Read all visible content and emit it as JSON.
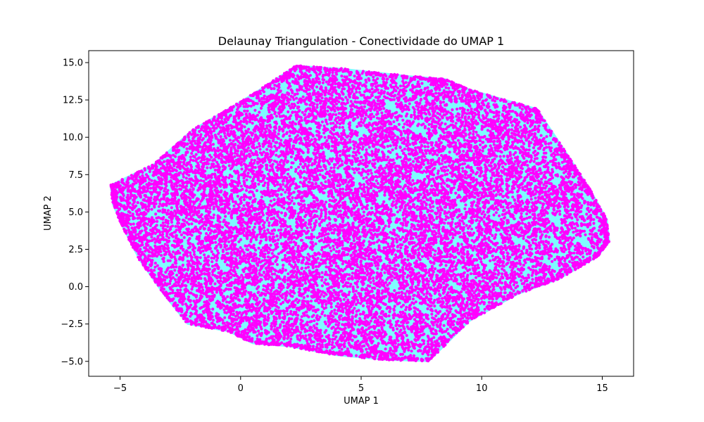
{
  "chart_data": {
    "type": "scatter",
    "title": "Delaunay Triangulation - Conectividade do UMAP 1",
    "xlabel": "UMAP 1",
    "ylabel": "UMAP 2",
    "xlim": [
      -6.3,
      16.3
    ],
    "ylim": [
      -6.0,
      15.8
    ],
    "xticks": [
      -5,
      0,
      5,
      10,
      15
    ],
    "xtick_labels": [
      "−5",
      "0",
      "5",
      "10",
      "15"
    ],
    "yticks": [
      -5.0,
      -2.5,
      0.0,
      2.5,
      5.0,
      7.5,
      10.0,
      12.5,
      15.0
    ],
    "ytick_labels": [
      "−5.0",
      "−2.5",
      "0.0",
      "2.5",
      "5.0",
      "7.5",
      "10.0",
      "12.5",
      "15.0"
    ],
    "grid": false,
    "series": [
      {
        "name": "triangulation-hull",
        "kind": "filled-polygon",
        "color": "#7ffbff",
        "hull": [
          [
            -5.4,
            6.8
          ],
          [
            -3.6,
            8.2
          ],
          [
            -2.0,
            10.5
          ],
          [
            -0.2,
            12.2
          ],
          [
            0.8,
            13.2
          ],
          [
            2.3,
            14.8
          ],
          [
            4.2,
            14.6
          ],
          [
            7.0,
            14.1
          ],
          [
            8.5,
            13.9
          ],
          [
            9.5,
            13.2
          ],
          [
            12.3,
            11.9
          ],
          [
            13.5,
            9.0
          ],
          [
            14.5,
            6.5
          ],
          [
            15.2,
            4.5
          ],
          [
            15.3,
            3.0
          ],
          [
            14.8,
            2.0
          ],
          [
            13.2,
            0.5
          ],
          [
            11.5,
            -0.5
          ],
          [
            9.5,
            -2.3
          ],
          [
            7.8,
            -5.0
          ],
          [
            6.0,
            -4.9
          ],
          [
            4.0,
            -4.6
          ],
          [
            2.0,
            -4.0
          ],
          [
            0.5,
            -3.8
          ],
          [
            -0.5,
            -3.0
          ],
          [
            -2.2,
            -2.5
          ],
          [
            -3.2,
            -0.5
          ],
          [
            -4.2,
            1.8
          ],
          [
            -4.9,
            4.0
          ],
          [
            -5.3,
            5.5
          ]
        ]
      },
      {
        "name": "umap-points",
        "kind": "scatter",
        "color": "#ff00ff",
        "approx_count": 40000,
        "x_range": [
          -5.4,
          15.3
        ],
        "y_range": [
          -5.0,
          14.8
        ]
      }
    ]
  }
}
